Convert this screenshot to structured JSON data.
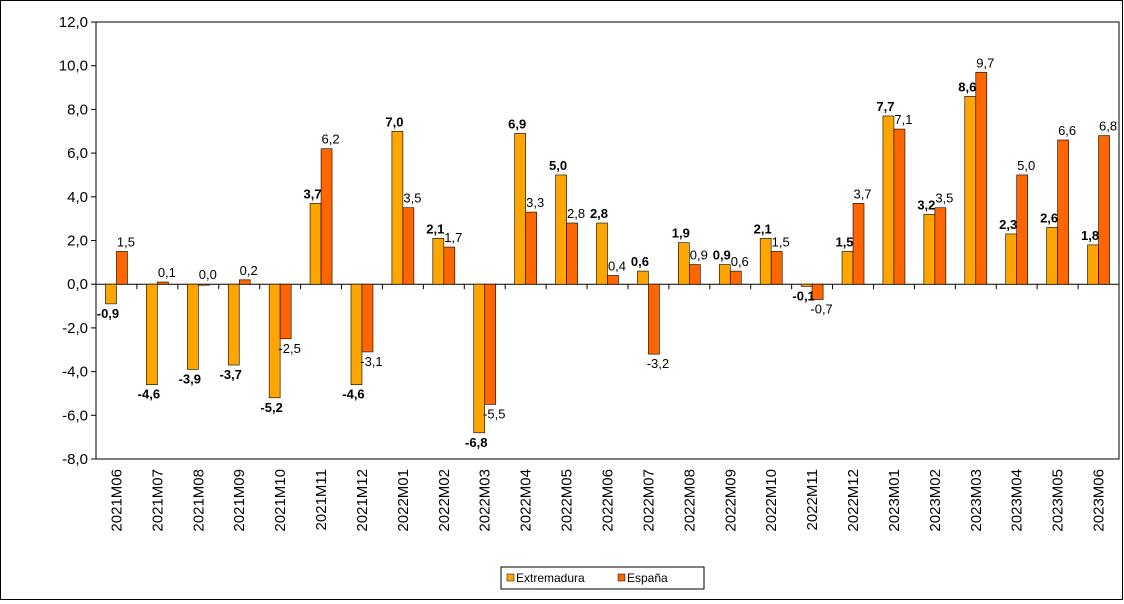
{
  "chart_data": {
    "type": "bar",
    "categories": [
      "2021M06",
      "2021M07",
      "2021M08",
      "2021M09",
      "2021M10",
      "2021M11",
      "2021M12",
      "2022M01",
      "2022M02",
      "2022M03",
      "2022M04",
      "2022M05",
      "2022M06",
      "2022M07",
      "2022M08",
      "2022M09",
      "2022M10",
      "2022M11",
      "2022M12",
      "2023M01",
      "2023M02",
      "2023M03",
      "2023M04",
      "2023M05",
      "2023M06"
    ],
    "series": [
      {
        "name": "Extremadura",
        "color": "#FFA500",
        "values": [
          -0.9,
          -4.6,
          -3.9,
          -3.7,
          -5.2,
          3.7,
          -4.6,
          7.0,
          2.1,
          -6.8,
          6.9,
          5.0,
          2.8,
          0.6,
          1.9,
          0.9,
          2.1,
          -0.1,
          1.5,
          7.7,
          3.2,
          8.6,
          2.3,
          2.6,
          1.8
        ],
        "labels": [
          "-0,9",
          "-4,6",
          "-3,9",
          "-3,7",
          "-5,2",
          "3,7",
          "-4,6",
          "7,0",
          "2,1",
          "-6,8",
          "6,9",
          "5,0",
          "2,8",
          "0,6",
          "1,9",
          "0,9",
          "2,1",
          "-0,1",
          "1,5",
          "7,7",
          "3,2",
          "8,6",
          "2,3",
          "2,6",
          "1,8"
        ]
      },
      {
        "name": "España",
        "color": "#FF6600",
        "values": [
          1.5,
          0.1,
          0.0,
          0.2,
          -2.5,
          6.2,
          -3.1,
          3.5,
          1.7,
          -5.5,
          3.3,
          2.8,
          0.4,
          -3.2,
          0.9,
          0.6,
          1.5,
          -0.7,
          3.7,
          7.1,
          3.5,
          9.7,
          5.0,
          6.6,
          6.8
        ],
        "labels": [
          "1,5",
          "0,1",
          "0,0",
          "0,2",
          "-2,5",
          "6,2",
          "-3,1",
          "3,5",
          "1,7",
          "-5,5",
          "3,3",
          "2,8",
          "0,4",
          "-3,2",
          "0,9",
          "0,6",
          "1,5",
          "-0,7",
          "3,7",
          "7,1",
          "3,5",
          "9,7",
          "5,0",
          "6,6",
          "6,8"
        ]
      }
    ],
    "ylim": [
      -8,
      12
    ],
    "yticks": [
      12,
      10,
      8,
      6,
      4,
      2,
      0,
      -2,
      -4,
      -6,
      -8
    ],
    "ytick_labels": [
      "12,0",
      "10,0",
      "8,0",
      "6,0",
      "4,0",
      "2,0",
      "0,0",
      "-2,0",
      "-4,0",
      "-6,0",
      "-8,0"
    ],
    "title": "",
    "xlabel": "",
    "ylabel": "",
    "grid": false,
    "legend": "bottom-center",
    "legend_entries": [
      "Extremadura",
      "España"
    ]
  }
}
